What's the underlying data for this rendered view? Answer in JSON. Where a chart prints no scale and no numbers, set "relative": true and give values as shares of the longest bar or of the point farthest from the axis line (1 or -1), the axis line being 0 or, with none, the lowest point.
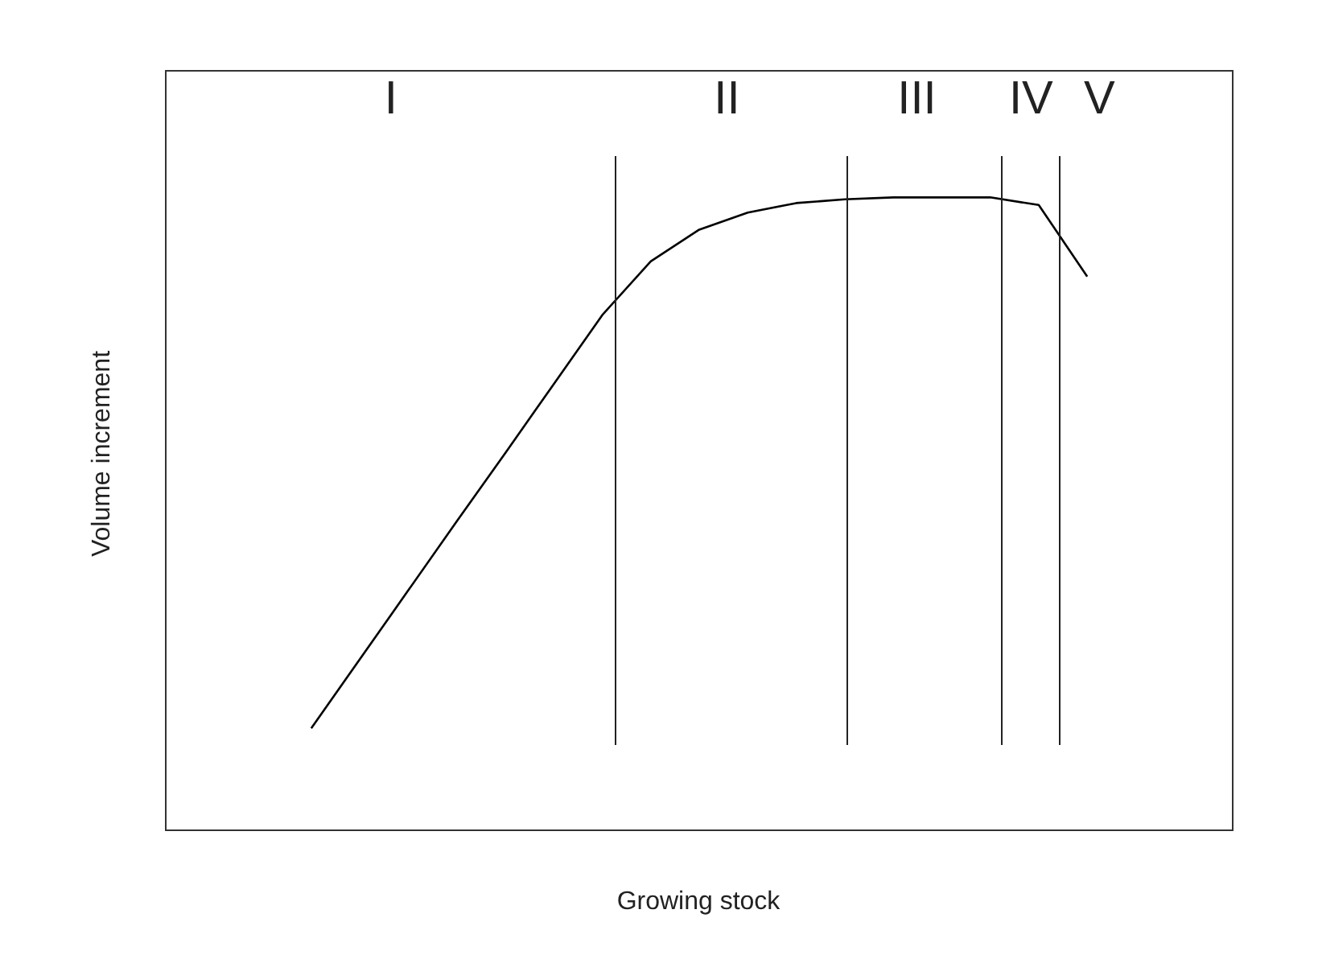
{
  "chart_data": {
    "type": "line",
    "relative": true,
    "xlabel": "Growing stock",
    "ylabel": "Volume increment",
    "color": "#000000",
    "marker": "none",
    "line_style": "solid",
    "grid": false,
    "legend": false,
    "tick_labels": false,
    "categories": [
      null,
      null,
      null,
      null,
      null,
      null,
      null,
      null,
      null,
      null,
      null,
      null,
      null,
      null,
      null,
      null,
      null,
      null,
      null,
      null,
      null,
      null,
      null
    ],
    "values": [
      null,
      null,
      null,
      0.161,
      0.27,
      0.379,
      0.488,
      0.596,
      0.705,
      0.814,
      0.899,
      0.949,
      0.976,
      0.991,
      0.997,
      1,
      1,
      1,
      0.988,
      0.875,
      null,
      null,
      null
    ],
    "annotations": [
      "I",
      "II",
      "III",
      "IV",
      "V"
    ]
  }
}
